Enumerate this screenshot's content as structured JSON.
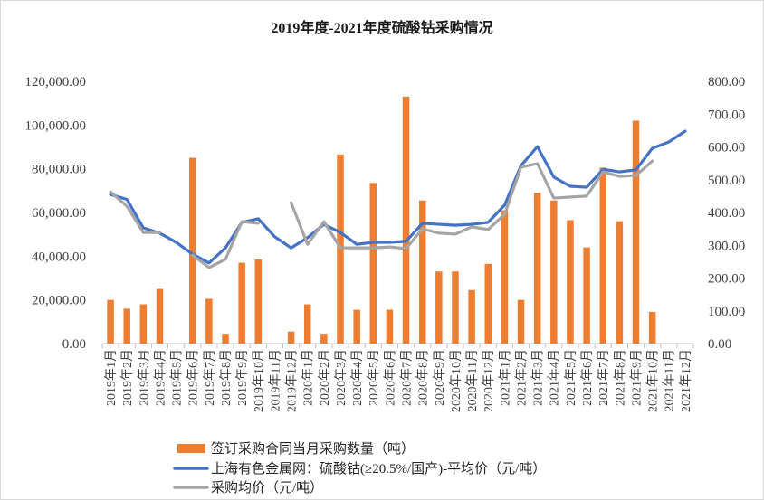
{
  "chart_data": {
    "type": "bar",
    "title": "2019年度-2021年度硫酸钴采购情况",
    "xlabel": "",
    "ylabel": "",
    "grid": false,
    "legend_position": "bottom",
    "categories": [
      "2019年1月",
      "2019年2月",
      "2019年3月",
      "2019年4月",
      "2019年5月",
      "2019年6月",
      "2019年7月",
      "2019年8月",
      "2019年9月",
      "2019年10月",
      "2019年11月",
      "2019年12月",
      "2020年1月",
      "2020年2月",
      "2020年3月",
      "2020年4月",
      "2020年5月",
      "2020年6月",
      "2020年7月",
      "2020年8月",
      "2020年9月",
      "2020年10月",
      "2020年11月",
      "2020年12月",
      "2021年1月",
      "2021年2月",
      "2021年3月",
      "2021年4月",
      "2021年5月",
      "2021年6月",
      "2021年7月",
      "2021年8月",
      "2021年9月",
      "2021年10月",
      "2021年11月",
      "2021年12月"
    ],
    "y_left": {
      "min": 0,
      "max": 120000,
      "step": 20000,
      "tick_labels": [
        "0.00",
        "20,000.00",
        "40,000.00",
        "60,000.00",
        "80,000.00",
        "100,000.00",
        "120,000.00"
      ]
    },
    "y_right": {
      "min": 0,
      "max": 800,
      "step": 100,
      "tick_labels": [
        "0.00",
        "100.00",
        "200.00",
        "300.00",
        "400.00",
        "500.00",
        "600.00",
        "700.00",
        "800.00"
      ]
    },
    "series": [
      {
        "name": "签订采购合同当月采购数量（吨）",
        "kind": "bar",
        "axis": "left",
        "color": "#ED7D31",
        "values": [
          20000,
          16000,
          18000,
          25000,
          null,
          85000,
          20500,
          4500,
          37000,
          38500,
          null,
          5500,
          18000,
          4500,
          86500,
          15500,
          73500,
          15500,
          113000,
          65500,
          33000,
          33000,
          24500,
          36500,
          61000,
          20000,
          69000,
          65500,
          56500,
          44000,
          80500,
          56000,
          102000,
          14500,
          null,
          null
        ]
      },
      {
        "name": "上海有色金属网：硫酸钴(≥20.5%/国产)-平均价（元/吨）",
        "kind": "line",
        "axis": "right",
        "color": "#4472C4",
        "values": [
          455,
          440,
          353,
          337,
          309,
          273,
          246,
          292,
          370,
          381,
          326,
          292,
          323,
          364,
          339,
          303,
          309,
          309,
          312,
          367,
          364,
          361,
          364,
          370,
          422,
          543,
          601,
          508,
          480,
          477,
          532,
          524,
          530,
          596,
          615,
          648
        ]
      },
      {
        "name": "采购均价（元/吨）",
        "kind": "line",
        "axis": "right",
        "color": "#A5A5A5",
        "values": [
          463,
          419,
          339,
          339,
          null,
          270,
          232,
          257,
          372,
          367,
          null,
          430,
          303,
          372,
          292,
          292,
          292,
          295,
          290,
          350,
          337,
          334,
          356,
          348,
          394,
          538,
          549,
          444,
          447,
          450,
          524,
          510,
          513,
          557,
          null,
          null
        ]
      }
    ]
  }
}
